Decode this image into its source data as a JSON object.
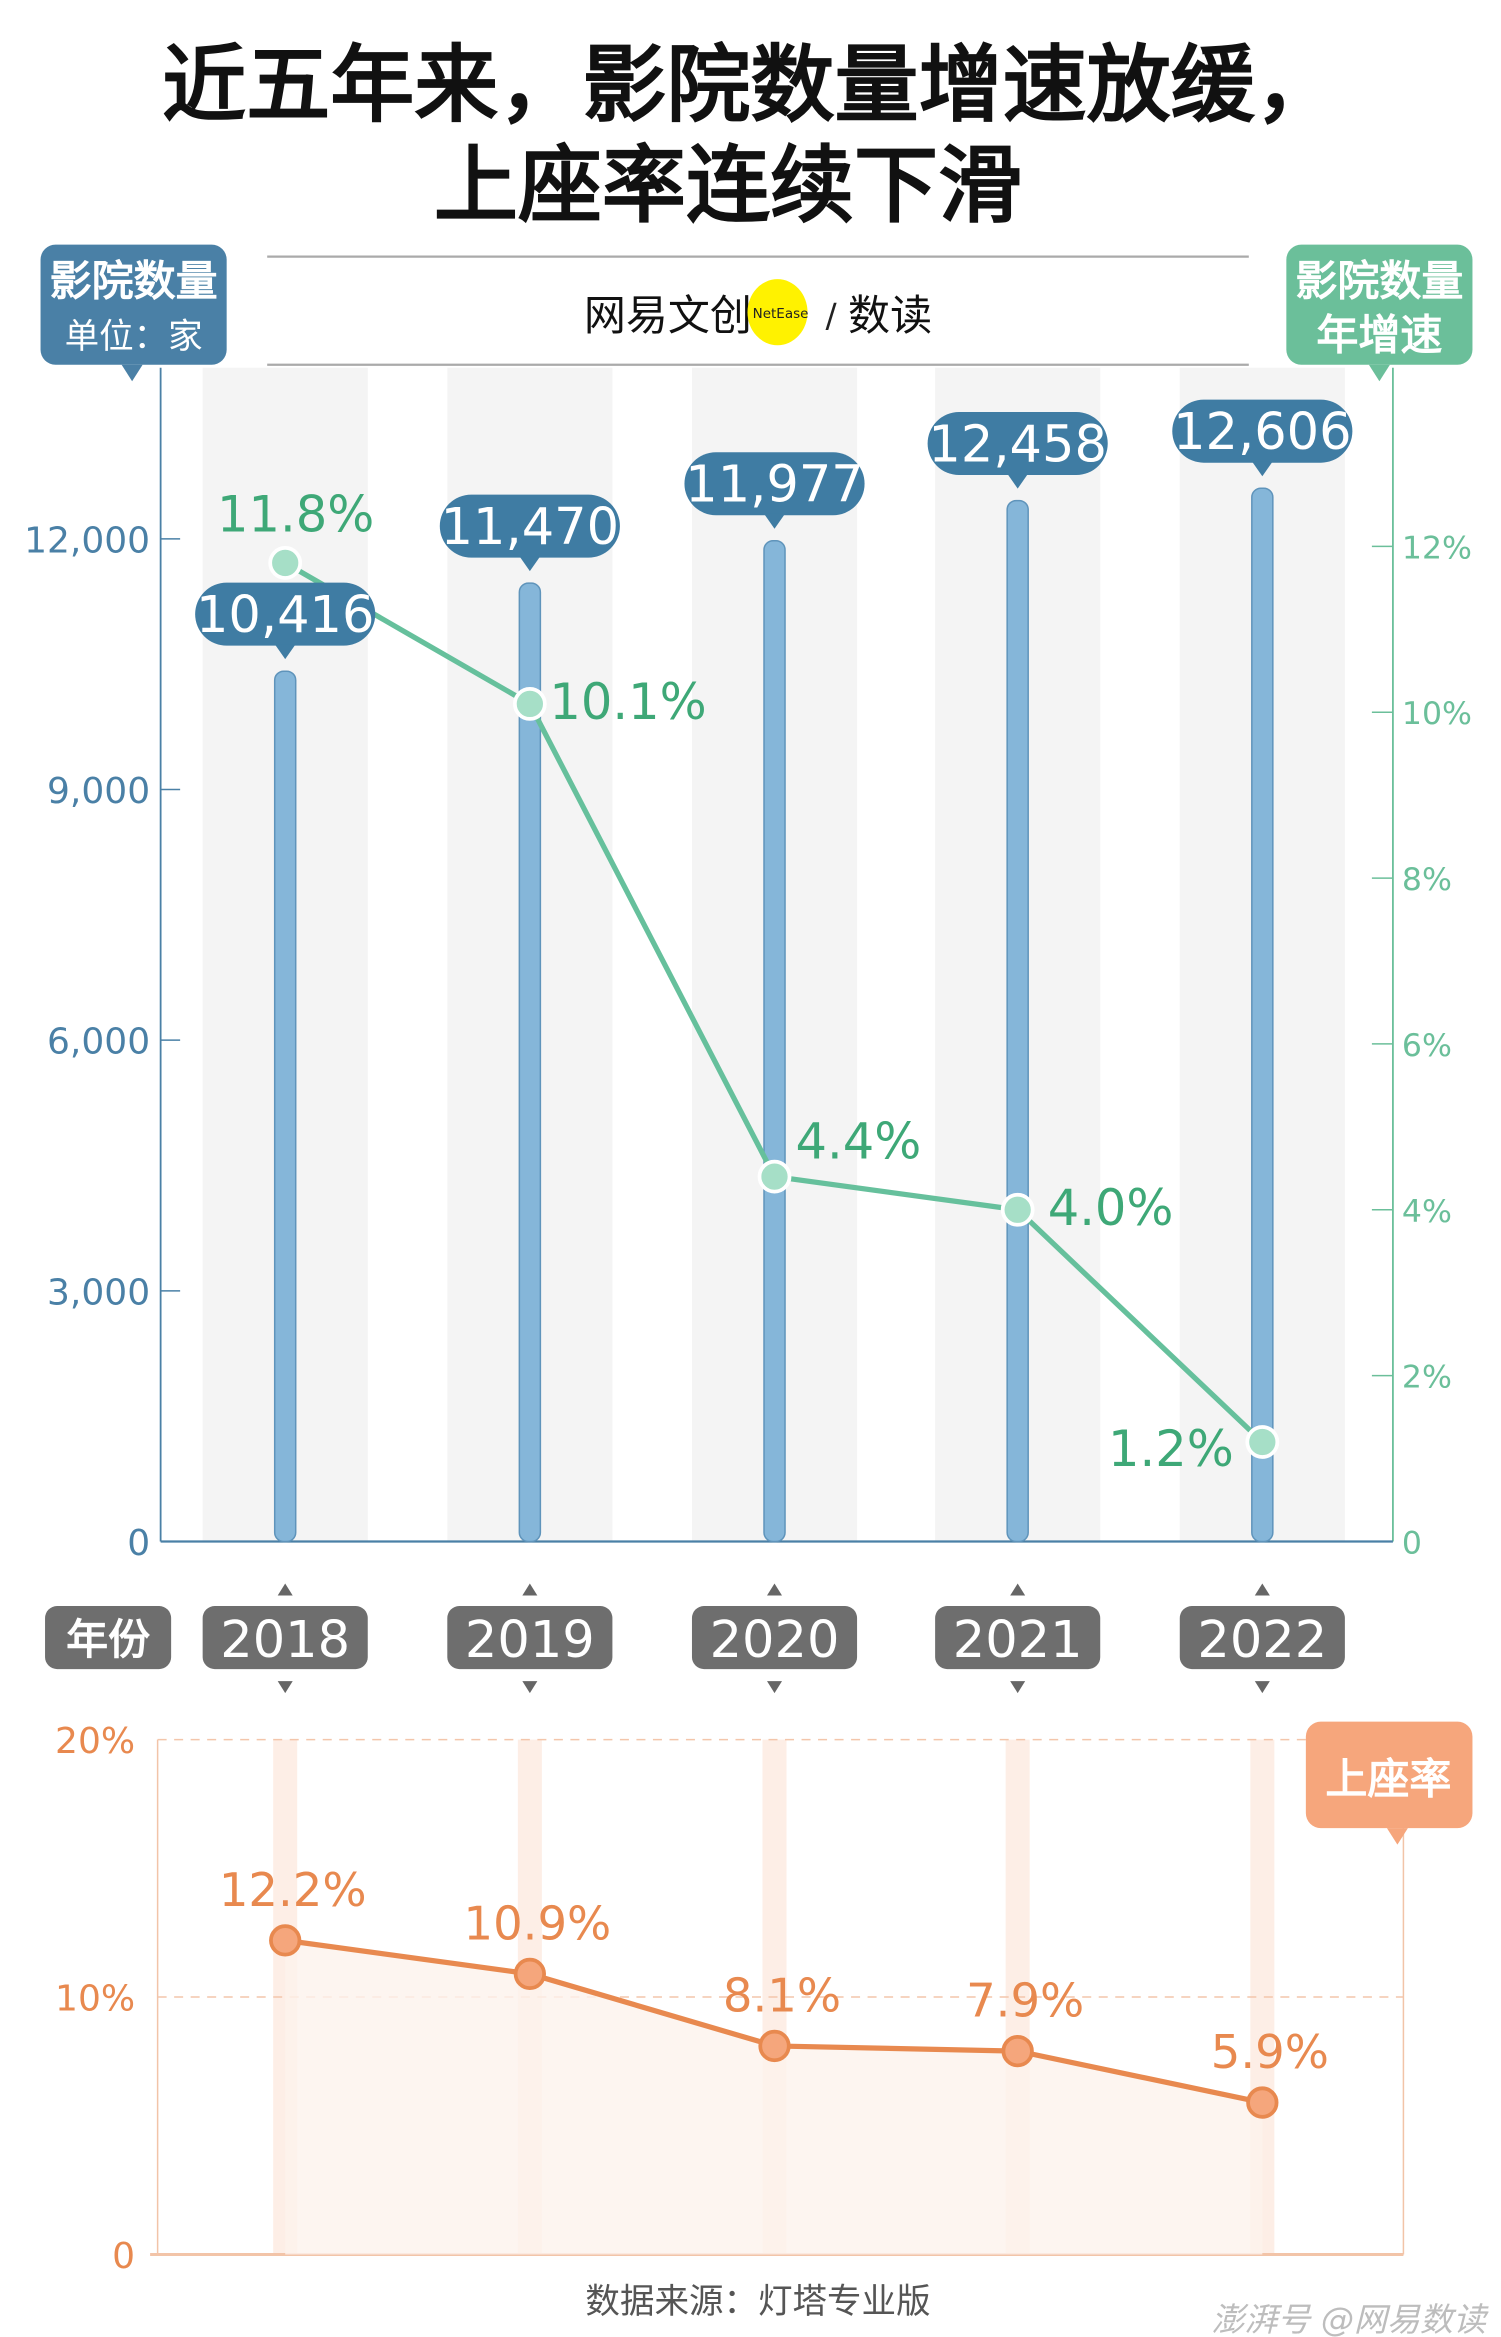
{
  "title_lines": [
    "近五年来，影院数量增速放缓，",
    "上座率连续下滑"
  ],
  "logo": {
    "text_left": "网易文创",
    "badge": "NetEase",
    "slash": "/",
    "text_right": "数读"
  },
  "left_label": {
    "title": "影院数量",
    "unit": "单位：家"
  },
  "right_label": {
    "line1": "影院数量",
    "line2": "年增速"
  },
  "year_label": "年份",
  "occupancy_label": "上座率",
  "source": "数据来源：灯塔专业版",
  "watermark": "澎湃号 @网易数读",
  "colors": {
    "bar": "#85b6d9",
    "bar_label": "#3f7ca3",
    "growth": "#66c09c",
    "growth_text": "#3ea877",
    "occupancy": "#e8894f",
    "occupancy_box": "#f6a67c",
    "year_pill": "#6e6e6e",
    "band": "#f4f4f4"
  },
  "chart_data": [
    {
      "type": "bar+line",
      "categories": [
        "2018",
        "2019",
        "2020",
        "2021",
        "2022"
      ],
      "series": [
        {
          "name": "影院数量",
          "axis": "left",
          "type": "bar",
          "values": [
            10416,
            11470,
            11977,
            12458,
            12606
          ],
          "labels": [
            "10,416",
            "11,470",
            "11,977",
            "12,458",
            "12,606"
          ]
        },
        {
          "name": "影院数量年增速",
          "axis": "right",
          "type": "line",
          "values": [
            11.8,
            10.1,
            4.4,
            4.0,
            1.2
          ],
          "labels": [
            "11.8%",
            "10.1%",
            "4.4%",
            "4.0%",
            "1.2%"
          ]
        }
      ],
      "left_axis": {
        "ylim": [
          0,
          12000
        ],
        "ticks": [
          "0",
          "3,000",
          "6,000",
          "9,000",
          "12,000"
        ]
      },
      "right_axis": {
        "ylim": [
          0,
          12
        ],
        "ticks": [
          "0",
          "2%",
          "4%",
          "6%",
          "8%",
          "10%",
          "12%"
        ]
      }
    },
    {
      "type": "area",
      "categories": [
        "2018",
        "2019",
        "2020",
        "2021",
        "2022"
      ],
      "series": [
        {
          "name": "上座率",
          "values": [
            12.2,
            10.9,
            8.1,
            7.9,
            5.9
          ],
          "labels": [
            "12.2%",
            "10.9%",
            "8.1%",
            "7.9%",
            "5.9%"
          ]
        }
      ],
      "ylim": [
        0,
        20
      ],
      "ticks": [
        "0",
        "10%",
        "20%"
      ],
      "grid": "dashed"
    }
  ]
}
